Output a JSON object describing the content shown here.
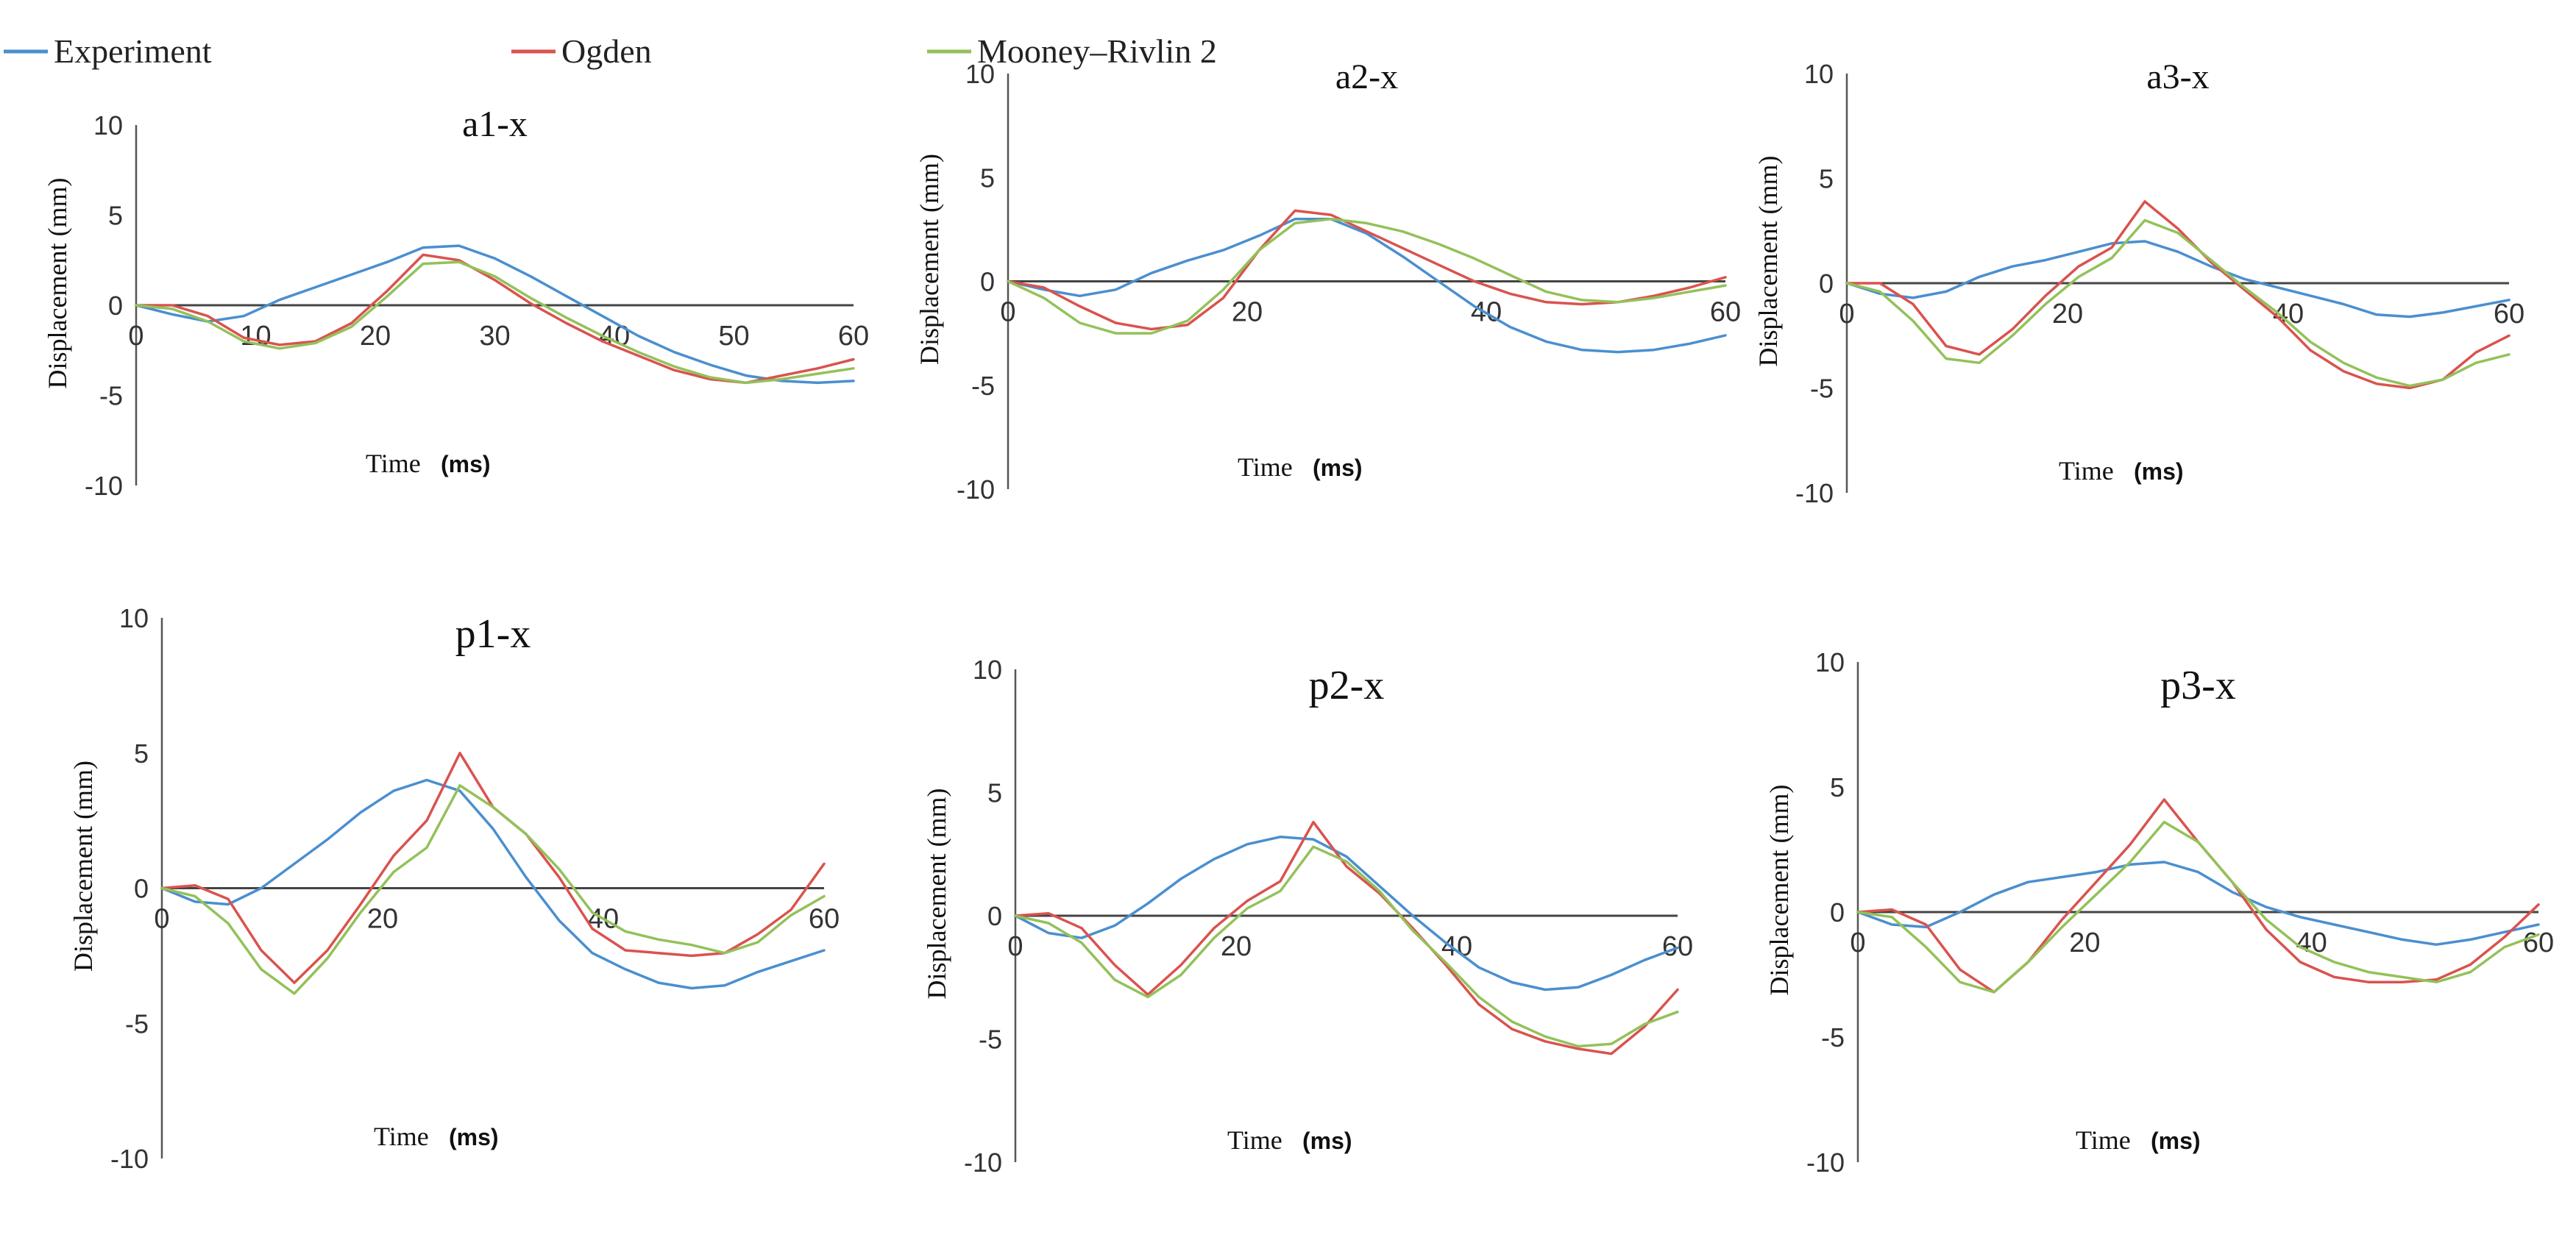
{
  "legend": {
    "items": [
      {
        "label": "Experiment",
        "color": "#4a8fcf"
      },
      {
        "label": "Ogden",
        "color": "#d9534f"
      },
      {
        "label": "Mooney–Rivlin 2",
        "color": "#93c15a"
      }
    ]
  },
  "chart_data": [
    {
      "type": "line",
      "title": "a1-x",
      "xlabel": "Time",
      "xlabel_unit": "(ms)",
      "ylabel": "Displacement (mm)",
      "xlim": [
        0,
        60
      ],
      "ylim": [
        -10,
        10
      ],
      "xticks": [
        "0",
        "10",
        "20",
        "30",
        "40",
        "50",
        "60"
      ],
      "yticks": [
        "10",
        "5",
        "0",
        "-5",
        "-10"
      ],
      "series": [
        {
          "name": "Experiment",
          "color": "#4a8fcf",
          "x": [
            0,
            3,
            6,
            9,
            12,
            15,
            18,
            21,
            24,
            27,
            30,
            33,
            36,
            39,
            42,
            45,
            48,
            51,
            54,
            57,
            60
          ],
          "y": [
            0,
            -0.5,
            -0.9,
            -0.6,
            0.3,
            1.0,
            1.7,
            2.4,
            3.2,
            3.3,
            2.6,
            1.6,
            0.5,
            -0.6,
            -1.7,
            -2.6,
            -3.3,
            -3.9,
            -4.2,
            -4.3,
            -4.2
          ]
        },
        {
          "name": "Ogden",
          "color": "#d9534f",
          "x": [
            0,
            3,
            6,
            9,
            12,
            15,
            18,
            21,
            24,
            27,
            30,
            33,
            36,
            39,
            42,
            45,
            48,
            51,
            54,
            57,
            60
          ],
          "y": [
            0,
            0,
            -0.6,
            -1.8,
            -2.2,
            -2.0,
            -1.0,
            0.8,
            2.8,
            2.5,
            1.4,
            0.1,
            -1.0,
            -2.0,
            -2.8,
            -3.6,
            -4.1,
            -4.3,
            -3.9,
            -3.5,
            -3.0
          ]
        },
        {
          "name": "Mooney–Rivlin 2",
          "color": "#93c15a",
          "x": [
            0,
            3,
            6,
            9,
            12,
            15,
            18,
            21,
            24,
            27,
            30,
            33,
            36,
            39,
            42,
            45,
            48,
            51,
            54,
            57,
            60
          ],
          "y": [
            0,
            -0.2,
            -0.9,
            -2.0,
            -2.4,
            -2.1,
            -1.2,
            0.5,
            2.3,
            2.4,
            1.6,
            0.4,
            -0.7,
            -1.7,
            -2.6,
            -3.4,
            -4.0,
            -4.3,
            -4.1,
            -3.8,
            -3.5
          ]
        }
      ]
    },
    {
      "type": "line",
      "title": "a2-x",
      "xlabel": "Time",
      "xlabel_unit": "(ms)",
      "ylabel": "Displacement (mm)",
      "xlim": [
        0,
        60
      ],
      "ylim": [
        -10,
        10
      ],
      "xticks": [
        "0",
        "20",
        "40",
        "60"
      ],
      "yticks": [
        "10",
        "5",
        "0",
        "-5",
        "-10"
      ],
      "series": [
        {
          "name": "Experiment",
          "color": "#4a8fcf",
          "x": [
            0,
            3,
            6,
            9,
            12,
            15,
            18,
            21,
            24,
            27,
            30,
            33,
            36,
            39,
            42,
            45,
            48,
            51,
            54,
            57,
            60
          ],
          "y": [
            0,
            -0.4,
            -0.7,
            -0.4,
            0.4,
            1.0,
            1.5,
            2.2,
            3.0,
            3.0,
            2.3,
            1.2,
            0.0,
            -1.2,
            -2.2,
            -2.9,
            -3.3,
            -3.4,
            -3.3,
            -3.0,
            -2.6
          ]
        },
        {
          "name": "Ogden",
          "color": "#d9534f",
          "x": [
            0,
            3,
            6,
            9,
            12,
            15,
            18,
            21,
            24,
            27,
            30,
            33,
            36,
            39,
            42,
            45,
            48,
            51,
            54,
            57,
            60
          ],
          "y": [
            0,
            -0.3,
            -1.2,
            -2.0,
            -2.3,
            -2.1,
            -0.8,
            1.5,
            3.4,
            3.2,
            2.4,
            1.6,
            0.8,
            0.0,
            -0.6,
            -1.0,
            -1.1,
            -1.0,
            -0.7,
            -0.3,
            0.2
          ]
        },
        {
          "name": "Mooney–Rivlin 2",
          "color": "#93c15a",
          "x": [
            0,
            3,
            6,
            9,
            12,
            15,
            18,
            21,
            24,
            27,
            30,
            33,
            36,
            39,
            42,
            45,
            48,
            51,
            54,
            57,
            60
          ],
          "y": [
            0,
            -0.8,
            -2.0,
            -2.5,
            -2.5,
            -1.9,
            -0.4,
            1.5,
            2.8,
            3.0,
            2.8,
            2.4,
            1.8,
            1.1,
            0.3,
            -0.5,
            -0.9,
            -1.0,
            -0.8,
            -0.5,
            -0.2
          ]
        }
      ]
    },
    {
      "type": "line",
      "title": "a3-x",
      "xlabel": "Time",
      "xlabel_unit": "(ms)",
      "ylabel": "Displacement (mm)",
      "xlim": [
        0,
        60
      ],
      "ylim": [
        -10,
        10
      ],
      "xticks": [
        "0",
        "20",
        "40",
        "60"
      ],
      "yticks": [
        "10",
        "5",
        "0",
        "-5",
        "-10"
      ],
      "series": [
        {
          "name": "Experiment",
          "color": "#4a8fcf",
          "x": [
            0,
            3,
            6,
            9,
            12,
            15,
            18,
            21,
            24,
            27,
            30,
            33,
            36,
            39,
            42,
            45,
            48,
            51,
            54,
            57,
            60
          ],
          "y": [
            0,
            -0.5,
            -0.7,
            -0.4,
            0.3,
            0.8,
            1.1,
            1.5,
            1.9,
            2.0,
            1.5,
            0.8,
            0.2,
            -0.2,
            -0.6,
            -1.0,
            -1.5,
            -1.6,
            -1.4,
            -1.1,
            -0.8
          ]
        },
        {
          "name": "Ogden",
          "color": "#d9534f",
          "x": [
            0,
            3,
            6,
            9,
            12,
            15,
            18,
            21,
            24,
            27,
            30,
            33,
            36,
            39,
            42,
            45,
            48,
            51,
            54,
            57,
            60
          ],
          "y": [
            0,
            0,
            -1.0,
            -3.0,
            -3.4,
            -2.2,
            -0.6,
            0.8,
            1.7,
            3.9,
            2.6,
            1.0,
            -0.3,
            -1.6,
            -3.2,
            -4.2,
            -4.8,
            -5.0,
            -4.6,
            -3.3,
            -2.5
          ]
        },
        {
          "name": "Mooney–Rivlin 2",
          "color": "#93c15a",
          "x": [
            0,
            3,
            6,
            9,
            12,
            15,
            18,
            21,
            24,
            27,
            30,
            33,
            36,
            39,
            42,
            45,
            48,
            51,
            54,
            57,
            60
          ],
          "y": [
            0,
            -0.4,
            -1.8,
            -3.6,
            -3.8,
            -2.5,
            -1.0,
            0.3,
            1.2,
            3.0,
            2.4,
            1.1,
            -0.2,
            -1.4,
            -2.8,
            -3.8,
            -4.5,
            -4.9,
            -4.6,
            -3.8,
            -3.4
          ]
        }
      ]
    },
    {
      "type": "line",
      "title": "p1-x",
      "xlabel": "Time",
      "xlabel_unit": "(ms)",
      "ylabel": "Displacement (mm)",
      "xlim": [
        0,
        60
      ],
      "ylim": [
        -10,
        10
      ],
      "xticks": [
        "0",
        "20",
        "40",
        "60"
      ],
      "yticks": [
        "10",
        "5",
        "0",
        "-5",
        "-10"
      ],
      "series": [
        {
          "name": "Experiment",
          "color": "#4a8fcf",
          "x": [
            0,
            3,
            6,
            9,
            12,
            15,
            18,
            21,
            24,
            27,
            30,
            33,
            36,
            39,
            42,
            45,
            48,
            51,
            54,
            57,
            60
          ],
          "y": [
            0,
            -0.5,
            -0.6,
            0,
            0.9,
            1.8,
            2.8,
            3.6,
            4.0,
            3.6,
            2.2,
            0.4,
            -1.2,
            -2.4,
            -3.0,
            -3.5,
            -3.7,
            -3.6,
            -3.1,
            -2.7,
            -2.3
          ]
        },
        {
          "name": "Ogden",
          "color": "#d9534f",
          "x": [
            0,
            3,
            6,
            9,
            12,
            15,
            18,
            21,
            24,
            27,
            30,
            33,
            36,
            39,
            42,
            45,
            48,
            51,
            54,
            57,
            60
          ],
          "y": [
            0,
            0.1,
            -0.4,
            -2.3,
            -3.5,
            -2.3,
            -0.6,
            1.2,
            2.5,
            5.0,
            3.0,
            2.0,
            0.4,
            -1.5,
            -2.3,
            -2.4,
            -2.5,
            -2.4,
            -1.7,
            -0.8,
            0.9
          ]
        },
        {
          "name": "Mooney–Rivlin 2",
          "color": "#93c15a",
          "x": [
            0,
            3,
            6,
            9,
            12,
            15,
            18,
            21,
            24,
            27,
            30,
            33,
            36,
            39,
            42,
            45,
            48,
            51,
            54,
            57,
            60
          ],
          "y": [
            0,
            -0.3,
            -1.3,
            -3.0,
            -3.9,
            -2.6,
            -0.9,
            0.6,
            1.5,
            3.8,
            3.0,
            2.0,
            0.7,
            -0.9,
            -1.6,
            -1.9,
            -2.1,
            -2.4,
            -2.0,
            -1.0,
            -0.3
          ]
        }
      ]
    },
    {
      "type": "line",
      "title": "p2-x",
      "xlabel": "Time",
      "xlabel_unit": "(ms)",
      "ylabel": "Displacement (mm)",
      "xlim": [
        0,
        60
      ],
      "ylim": [
        -10,
        10
      ],
      "xticks": [
        "0",
        "20",
        "40",
        "60"
      ],
      "yticks": [
        "10",
        "5",
        "0",
        "-5",
        "-10"
      ],
      "series": [
        {
          "name": "Experiment",
          "color": "#4a8fcf",
          "x": [
            0,
            3,
            6,
            9,
            12,
            15,
            18,
            21,
            24,
            27,
            30,
            33,
            36,
            39,
            42,
            45,
            48,
            51,
            54,
            57,
            60
          ],
          "y": [
            0,
            -0.7,
            -0.9,
            -0.4,
            0.5,
            1.5,
            2.3,
            2.9,
            3.2,
            3.1,
            2.4,
            1.2,
            0,
            -1.1,
            -2.1,
            -2.7,
            -3.0,
            -2.9,
            -2.4,
            -1.8,
            -1.3
          ]
        },
        {
          "name": "Ogden",
          "color": "#d9534f",
          "x": [
            0,
            3,
            6,
            9,
            12,
            15,
            18,
            21,
            24,
            27,
            30,
            33,
            36,
            39,
            42,
            45,
            48,
            51,
            54,
            57,
            60
          ],
          "y": [
            0,
            0.1,
            -0.5,
            -2.0,
            -3.2,
            -2.0,
            -0.5,
            0.6,
            1.4,
            3.8,
            2.0,
            0.9,
            -0.5,
            -2.0,
            -3.6,
            -4.6,
            -5.1,
            -5.4,
            -5.6,
            -4.5,
            -3.0
          ]
        },
        {
          "name": "Mooney–Rivlin 2",
          "color": "#93c15a",
          "x": [
            0,
            3,
            6,
            9,
            12,
            15,
            18,
            21,
            24,
            27,
            30,
            33,
            36,
            39,
            42,
            45,
            48,
            51,
            54,
            57,
            60
          ],
          "y": [
            0,
            -0.3,
            -1.1,
            -2.6,
            -3.3,
            -2.4,
            -0.9,
            0.3,
            1.0,
            2.8,
            2.2,
            1.0,
            -0.6,
            -1.9,
            -3.3,
            -4.3,
            -4.9,
            -5.3,
            -5.2,
            -4.4,
            -3.9
          ]
        }
      ]
    },
    {
      "type": "line",
      "title": "p3-x",
      "xlabel": "Time",
      "xlabel_unit": "(ms)",
      "ylabel": "Displacement (mm)",
      "xlim": [
        0,
        60
      ],
      "ylim": [
        -10,
        10
      ],
      "xticks": [
        "0",
        "20",
        "40",
        "60"
      ],
      "yticks": [
        "10",
        "5",
        "0",
        "-5",
        "-10"
      ],
      "series": [
        {
          "name": "Experiment",
          "color": "#4a8fcf",
          "x": [
            0,
            3,
            6,
            9,
            12,
            15,
            18,
            21,
            24,
            27,
            30,
            33,
            36,
            39,
            42,
            45,
            48,
            51,
            54,
            57,
            60
          ],
          "y": [
            0,
            -0.5,
            -0.6,
            0,
            0.7,
            1.2,
            1.4,
            1.6,
            1.9,
            2.0,
            1.6,
            0.8,
            0.2,
            -0.2,
            -0.5,
            -0.8,
            -1.1,
            -1.3,
            -1.1,
            -0.8,
            -0.5
          ]
        },
        {
          "name": "Ogden",
          "color": "#d9534f",
          "x": [
            0,
            3,
            6,
            9,
            12,
            15,
            18,
            21,
            24,
            27,
            30,
            33,
            36,
            39,
            42,
            45,
            48,
            51,
            54,
            57,
            60
          ],
          "y": [
            0,
            0.1,
            -0.5,
            -2.3,
            -3.2,
            -2.0,
            -0.3,
            1.2,
            2.7,
            4.5,
            2.8,
            1.2,
            -0.7,
            -2.0,
            -2.6,
            -2.8,
            -2.8,
            -2.7,
            -2.1,
            -1.0,
            0.3
          ]
        },
        {
          "name": "Mooney–Rivlin 2",
          "color": "#93c15a",
          "x": [
            0,
            3,
            6,
            9,
            12,
            15,
            18,
            21,
            24,
            27,
            30,
            33,
            36,
            39,
            42,
            45,
            48,
            51,
            54,
            57,
            60
          ],
          "y": [
            0,
            -0.2,
            -1.4,
            -2.8,
            -3.2,
            -2.0,
            -0.6,
            0.7,
            2.0,
            3.6,
            2.8,
            1.2,
            -0.3,
            -1.4,
            -2.0,
            -2.4,
            -2.6,
            -2.8,
            -2.4,
            -1.4,
            -0.9
          ]
        }
      ]
    }
  ]
}
